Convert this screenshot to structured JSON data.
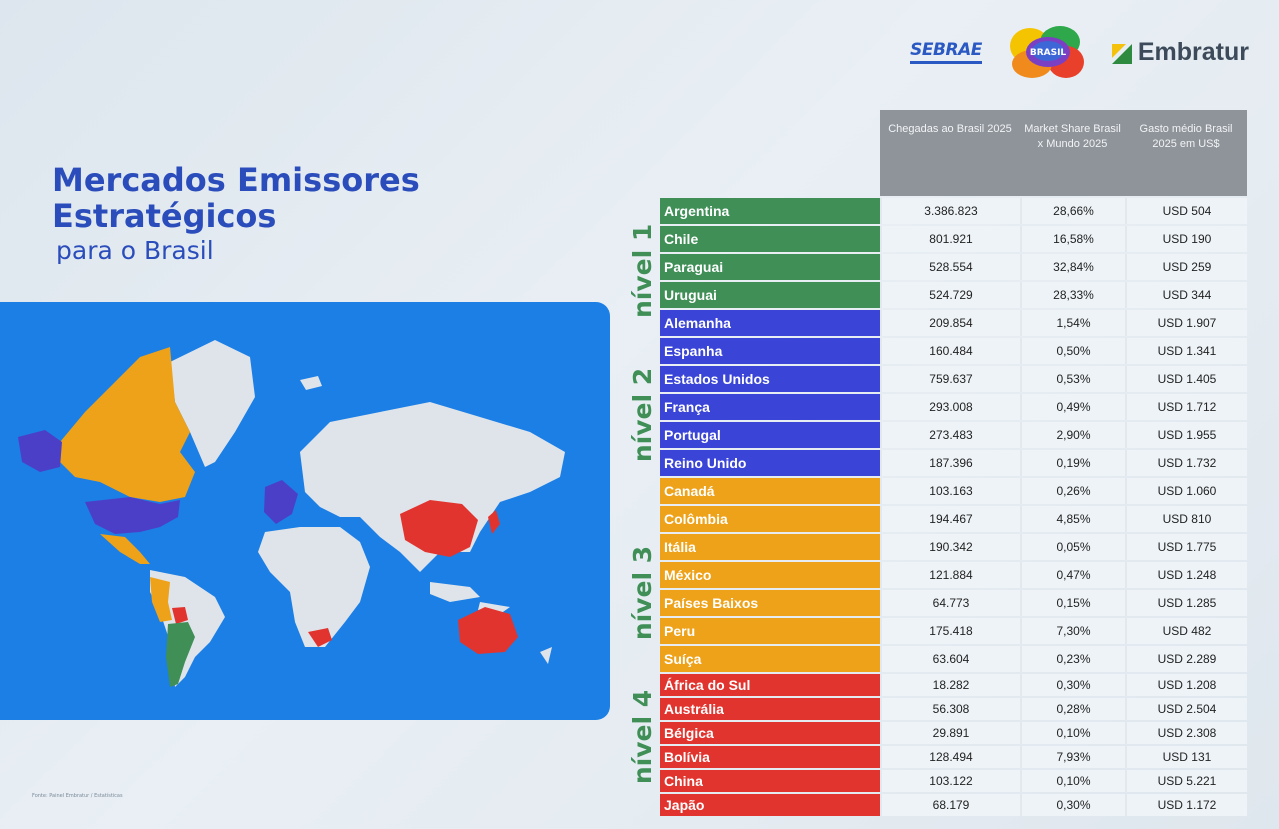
{
  "logos": {
    "sebrae": "SEBRAE",
    "brasil": "BRASIL",
    "embratur": "Embratur"
  },
  "title": {
    "line1": "Mercados Emissores",
    "line2": "Estratégicos",
    "line3": "para o Brasil"
  },
  "source": "Fonte: Painel Embratur / Estatísticas",
  "colors": {
    "nivel1": "#3f8f57",
    "nivel2": "#3a44d6",
    "nivel3": "#eda21a",
    "nivel4": "#e2342e",
    "title": "#2a4dbb",
    "map_bg": "#1b7fe6"
  },
  "levels": [
    {
      "label": "nível 1"
    },
    {
      "label": "nível 2"
    },
    {
      "label": "nível 3"
    },
    {
      "label": "nível 4"
    }
  ],
  "table": {
    "headers": [
      "Chegadas ao Brasil 2025",
      "Market Share Brasil x Mundo 2025",
      "Gasto médio Brasil 2025 em US$"
    ],
    "rows": [
      {
        "country": "Argentina",
        "arrivals": "3.386.823",
        "share": "28,66%",
        "spend": "USD 504",
        "level": 1
      },
      {
        "country": "Chile",
        "arrivals": "801.921",
        "share": "16,58%",
        "spend": "USD 190",
        "level": 1
      },
      {
        "country": "Paraguai",
        "arrivals": "528.554",
        "share": "32,84%",
        "spend": "USD 259",
        "level": 1
      },
      {
        "country": "Uruguai",
        "arrivals": "524.729",
        "share": "28,33%",
        "spend": "USD 344",
        "level": 1
      },
      {
        "country": "Alemanha",
        "arrivals": "209.854",
        "share": "1,54%",
        "spend": "USD 1.907",
        "level": 2
      },
      {
        "country": "Espanha",
        "arrivals": "160.484",
        "share": "0,50%",
        "spend": "USD 1.341",
        "level": 2
      },
      {
        "country": "Estados Unidos",
        "arrivals": "759.637",
        "share": "0,53%",
        "spend": "USD 1.405",
        "level": 2
      },
      {
        "country": "França",
        "arrivals": "293.008",
        "share": "0,49%",
        "spend": "USD 1.712",
        "level": 2
      },
      {
        "country": "Portugal",
        "arrivals": "273.483",
        "share": "2,90%",
        "spend": "USD 1.955",
        "level": 2
      },
      {
        "country": "Reino Unido",
        "arrivals": "187.396",
        "share": "0,19%",
        "spend": "USD 1.732",
        "level": 2
      },
      {
        "country": "Canadá",
        "arrivals": "103.163",
        "share": "0,26%",
        "spend": "USD 1.060",
        "level": 3
      },
      {
        "country": "Colômbia",
        "arrivals": "194.467",
        "share": "4,85%",
        "spend": "USD 810",
        "level": 3
      },
      {
        "country": "Itália",
        "arrivals": "190.342",
        "share": "0,05%",
        "spend": "USD 1.775",
        "level": 3
      },
      {
        "country": "México",
        "arrivals": "121.884",
        "share": "0,47%",
        "spend": "USD 1.248",
        "level": 3
      },
      {
        "country": "Países Baixos",
        "arrivals": "64.773",
        "share": "0,15%",
        "spend": "USD 1.285",
        "level": 3
      },
      {
        "country": "Peru",
        "arrivals": "175.418",
        "share": "7,30%",
        "spend": "USD 482",
        "level": 3
      },
      {
        "country": "Suíça",
        "arrivals": "63.604",
        "share": "0,23%",
        "spend": "USD 2.289",
        "level": 3
      },
      {
        "country": "África do Sul",
        "arrivals": "18.282",
        "share": "0,30%",
        "spend": "USD 1.208",
        "level": 4
      },
      {
        "country": "Austrália",
        "arrivals": "56.308",
        "share": "0,28%",
        "spend": "USD 2.504",
        "level": 4
      },
      {
        "country": "Bélgica",
        "arrivals": "29.891",
        "share": "0,10%",
        "spend": "USD 2.308",
        "level": 4
      },
      {
        "country": "Bolívia",
        "arrivals": "128.494",
        "share": "7,93%",
        "spend": "USD 131",
        "level": 4
      },
      {
        "country": "China",
        "arrivals": "103.122",
        "share": "0,10%",
        "spend": "USD 5.221",
        "level": 4
      },
      {
        "country": "Japão",
        "arrivals": "68.179",
        "share": "0,30%",
        "spend": "USD 1.172",
        "level": 4
      }
    ]
  }
}
